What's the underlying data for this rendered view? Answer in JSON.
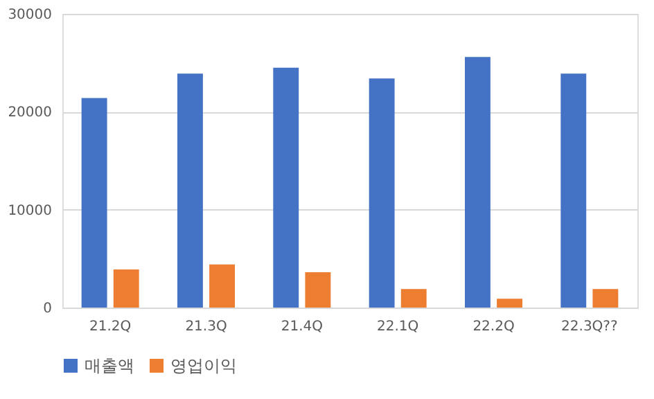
{
  "chart_data": {
    "type": "bar",
    "categories": [
      "21.2Q",
      "21.3Q",
      "21.4Q",
      "22.1Q",
      "22.2Q",
      "22.3Q??"
    ],
    "series": [
      {
        "name": "매출액",
        "color": "#4472c4",
        "values": [
          21400,
          23900,
          24500,
          23400,
          25600,
          23900
        ]
      },
      {
        "name": "영업이익",
        "color": "#ed7d31",
        "values": [
          3900,
          4400,
          3600,
          1900,
          900,
          1900
        ]
      }
    ],
    "ylim": [
      0,
      30000
    ],
    "yticks": [
      0,
      10000,
      20000,
      30000
    ],
    "grid": "y",
    "legend": "bottom"
  }
}
